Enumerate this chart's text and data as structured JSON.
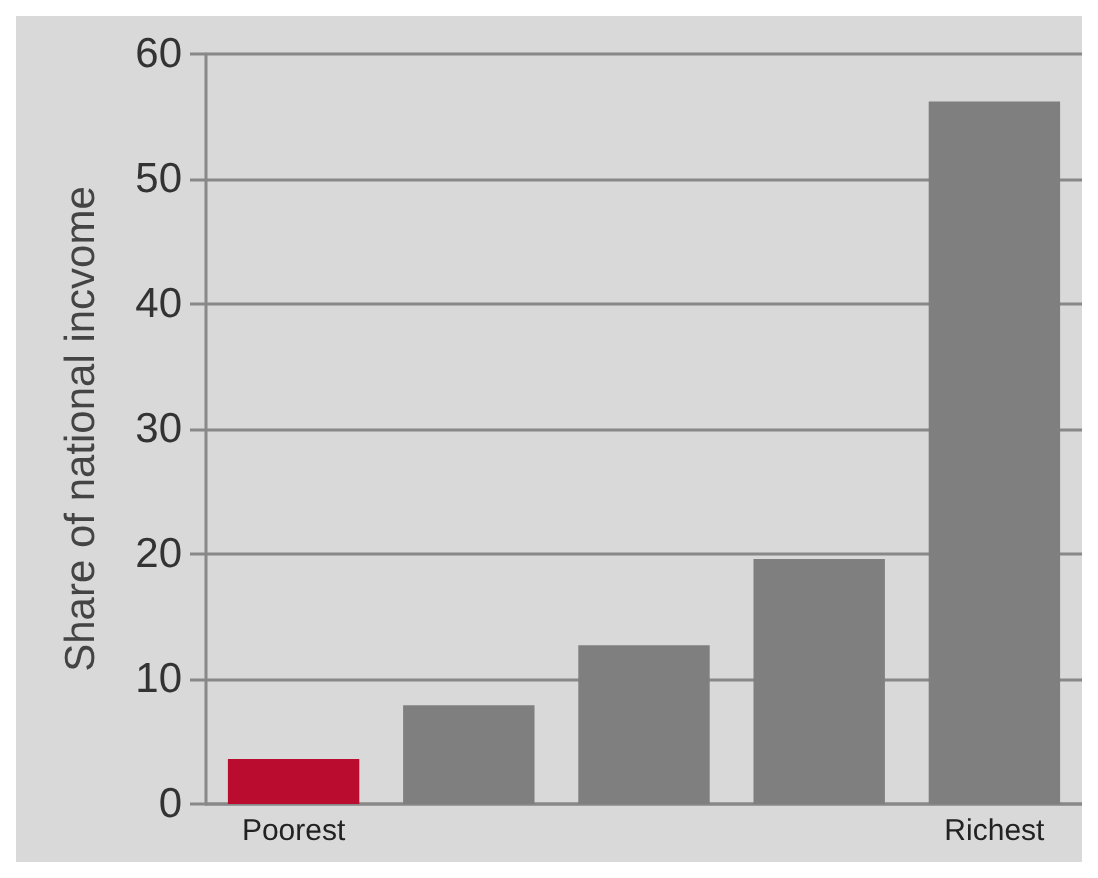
{
  "chart_data": {
    "type": "bar",
    "ylabel": "Share of national incvome",
    "categories": [
      "Poorest",
      null,
      null,
      null,
      "Richest"
    ],
    "values": [
      3.6,
      7.9,
      12.7,
      19.6,
      56.2
    ],
    "colors": [
      "#b90c2e",
      "#7f7f7f",
      "#7f7f7f",
      "#7f7f7f",
      "#7f7f7f"
    ],
    "ylim": [
      0,
      60
    ],
    "yticks": [
      0,
      10,
      20,
      30,
      40,
      50,
      60
    ],
    "grid": "y"
  }
}
